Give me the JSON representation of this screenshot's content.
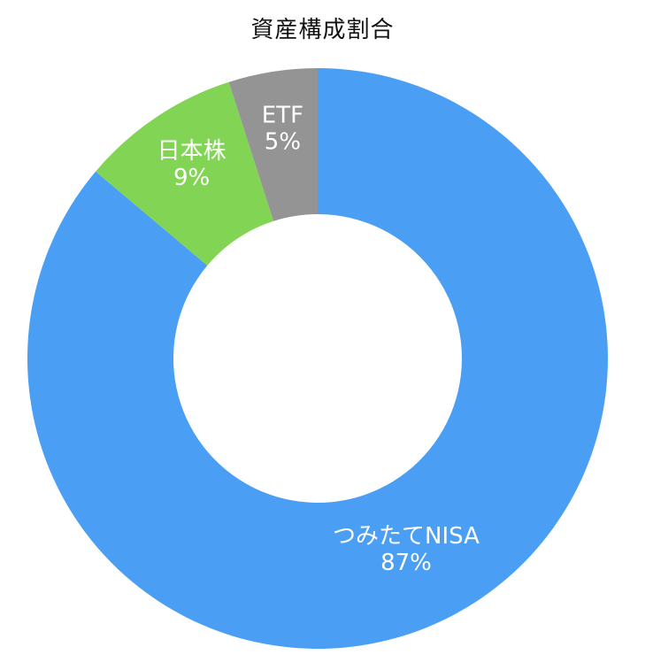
{
  "chart_data": {
    "type": "pie",
    "title": "資産構成割合",
    "donut": true,
    "start_direction": "top",
    "direction": "clockwise",
    "slices": [
      {
        "label": "つみたてNISA",
        "value": 87,
        "value_label": "87%",
        "color": "#4a9ff5"
      },
      {
        "label": "日本株",
        "value": 9,
        "value_label": "9%",
        "color": "#82d554"
      },
      {
        "label": "ETF",
        "value": 5,
        "value_label": "5%",
        "color": "#949494"
      }
    ]
  }
}
